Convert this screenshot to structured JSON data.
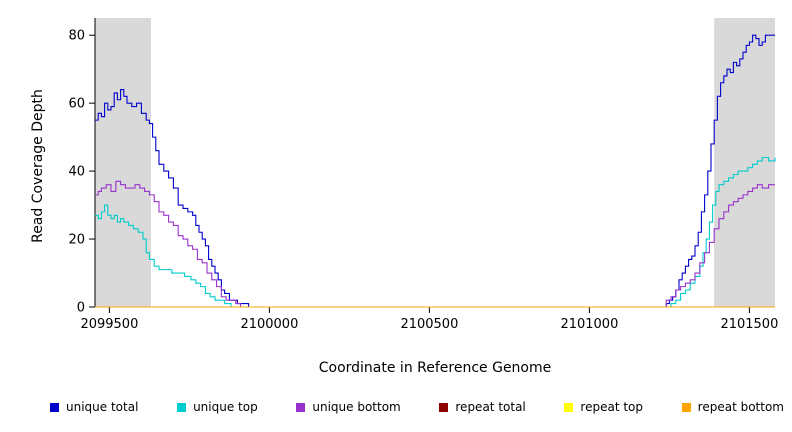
{
  "chart_data": {
    "type": "line",
    "title": "",
    "xlabel": "Coordinate in Reference Genome",
    "ylabel": "Read Coverage Depth",
    "xlim": [
      2099455,
      2101580
    ],
    "ylim": [
      0,
      83
    ],
    "x_ticks": [
      2099500,
      2100000,
      2100500,
      2101000,
      2101500
    ],
    "y_ticks": [
      0,
      20,
      40,
      60,
      80
    ],
    "grid": false,
    "shade_color": "#d9d9d9",
    "shaded_regions": [
      [
        2099455,
        2099630
      ],
      [
        2101390,
        2101580
      ]
    ],
    "legend_position": "bottom",
    "legend": [
      {
        "label": "unique total",
        "color": "#0000cd"
      },
      {
        "label": "unique top",
        "color": "#00cdcd"
      },
      {
        "label": "unique bottom",
        "color": "#9932cc"
      },
      {
        "label": "repeat total",
        "color": "#8b0000"
      },
      {
        "label": "repeat top",
        "color": "#ffff00"
      },
      {
        "label": "repeat bottom",
        "color": "#ffa500"
      }
    ],
    "series": [
      {
        "name": "unique total",
        "color": "#0000cd",
        "points": [
          [
            2099455,
            55
          ],
          [
            2099465,
            57
          ],
          [
            2099475,
            56
          ],
          [
            2099485,
            60
          ],
          [
            2099495,
            58
          ],
          [
            2099505,
            59
          ],
          [
            2099515,
            63
          ],
          [
            2099525,
            61
          ],
          [
            2099535,
            64
          ],
          [
            2099545,
            62
          ],
          [
            2099555,
            60
          ],
          [
            2099570,
            59
          ],
          [
            2099585,
            60
          ],
          [
            2099600,
            57
          ],
          [
            2099615,
            55
          ],
          [
            2099625,
            54
          ],
          [
            2099635,
            50
          ],
          [
            2099645,
            46
          ],
          [
            2099655,
            42
          ],
          [
            2099670,
            40
          ],
          [
            2099685,
            38
          ],
          [
            2099700,
            35
          ],
          [
            2099715,
            30
          ],
          [
            2099730,
            29
          ],
          [
            2099745,
            28
          ],
          [
            2099760,
            27
          ],
          [
            2099770,
            24
          ],
          [
            2099780,
            22
          ],
          [
            2099790,
            20
          ],
          [
            2099800,
            18
          ],
          [
            2099810,
            14
          ],
          [
            2099820,
            12
          ],
          [
            2099830,
            10
          ],
          [
            2099840,
            8
          ],
          [
            2099850,
            5
          ],
          [
            2099860,
            4
          ],
          [
            2099875,
            2
          ],
          [
            2099890,
            2
          ],
          [
            2099900,
            1
          ],
          [
            2099920,
            1
          ],
          [
            2099935,
            0
          ],
          [
            2101230,
            0
          ],
          [
            2101240,
            1
          ],
          [
            2101250,
            2
          ],
          [
            2101260,
            3
          ],
          [
            2101270,
            5
          ],
          [
            2101280,
            8
          ],
          [
            2101290,
            10
          ],
          [
            2101300,
            12
          ],
          [
            2101310,
            14
          ],
          [
            2101320,
            15
          ],
          [
            2101330,
            18
          ],
          [
            2101340,
            22
          ],
          [
            2101350,
            28
          ],
          [
            2101360,
            33
          ],
          [
            2101370,
            40
          ],
          [
            2101380,
            48
          ],
          [
            2101390,
            55
          ],
          [
            2101400,
            62
          ],
          [
            2101410,
            66
          ],
          [
            2101420,
            68
          ],
          [
            2101430,
            70
          ],
          [
            2101440,
            69
          ],
          [
            2101450,
            72
          ],
          [
            2101460,
            71
          ],
          [
            2101470,
            73
          ],
          [
            2101480,
            75
          ],
          [
            2101490,
            77
          ],
          [
            2101500,
            78
          ],
          [
            2101510,
            80
          ],
          [
            2101520,
            79
          ],
          [
            2101530,
            77
          ],
          [
            2101540,
            78
          ],
          [
            2101550,
            80
          ],
          [
            2101580,
            80
          ]
        ]
      },
      {
        "name": "unique top",
        "color": "#00cdcd",
        "points": [
          [
            2099455,
            27
          ],
          [
            2099465,
            26
          ],
          [
            2099475,
            28
          ],
          [
            2099485,
            30
          ],
          [
            2099495,
            27
          ],
          [
            2099505,
            26
          ],
          [
            2099515,
            27
          ],
          [
            2099525,
            25
          ],
          [
            2099535,
            26
          ],
          [
            2099545,
            25
          ],
          [
            2099560,
            24
          ],
          [
            2099575,
            23
          ],
          [
            2099590,
            22
          ],
          [
            2099605,
            20
          ],
          [
            2099615,
            16
          ],
          [
            2099625,
            14
          ],
          [
            2099640,
            12
          ],
          [
            2099655,
            11
          ],
          [
            2099675,
            11
          ],
          [
            2099695,
            10
          ],
          [
            2099715,
            10
          ],
          [
            2099735,
            9
          ],
          [
            2099755,
            8
          ],
          [
            2099770,
            7
          ],
          [
            2099785,
            6
          ],
          [
            2099800,
            4
          ],
          [
            2099815,
            3
          ],
          [
            2099830,
            2
          ],
          [
            2099845,
            2
          ],
          [
            2099860,
            1
          ],
          [
            2099880,
            0
          ],
          [
            2101240,
            0
          ],
          [
            2101255,
            1
          ],
          [
            2101270,
            2
          ],
          [
            2101285,
            4
          ],
          [
            2101300,
            5
          ],
          [
            2101315,
            7
          ],
          [
            2101330,
            9
          ],
          [
            2101345,
            12
          ],
          [
            2101355,
            16
          ],
          [
            2101365,
            20
          ],
          [
            2101375,
            25
          ],
          [
            2101385,
            30
          ],
          [
            2101395,
            34
          ],
          [
            2101405,
            36
          ],
          [
            2101420,
            37
          ],
          [
            2101435,
            38
          ],
          [
            2101450,
            39
          ],
          [
            2101465,
            40
          ],
          [
            2101480,
            40
          ],
          [
            2101495,
            41
          ],
          [
            2101510,
            42
          ],
          [
            2101525,
            43
          ],
          [
            2101540,
            44
          ],
          [
            2101560,
            43
          ],
          [
            2101580,
            44
          ]
        ]
      },
      {
        "name": "unique bottom",
        "color": "#9932cc",
        "points": [
          [
            2099455,
            33
          ],
          [
            2099465,
            34
          ],
          [
            2099475,
            35
          ],
          [
            2099490,
            36
          ],
          [
            2099505,
            34
          ],
          [
            2099520,
            37
          ],
          [
            2099535,
            36
          ],
          [
            2099550,
            35
          ],
          [
            2099565,
            35
          ],
          [
            2099580,
            36
          ],
          [
            2099595,
            35
          ],
          [
            2099610,
            34
          ],
          [
            2099625,
            33
          ],
          [
            2099640,
            31
          ],
          [
            2099655,
            28
          ],
          [
            2099670,
            27
          ],
          [
            2099685,
            25
          ],
          [
            2099700,
            24
          ],
          [
            2099715,
            21
          ],
          [
            2099730,
            20
          ],
          [
            2099745,
            18
          ],
          [
            2099760,
            17
          ],
          [
            2099775,
            14
          ],
          [
            2099790,
            13
          ],
          [
            2099805,
            10
          ],
          [
            2099820,
            8
          ],
          [
            2099835,
            6
          ],
          [
            2099850,
            3
          ],
          [
            2099865,
            2
          ],
          [
            2099880,
            2
          ],
          [
            2099895,
            1
          ],
          [
            2099910,
            0
          ],
          [
            2101225,
            0
          ],
          [
            2101240,
            2
          ],
          [
            2101255,
            3
          ],
          [
            2101270,
            5
          ],
          [
            2101285,
            6
          ],
          [
            2101300,
            7
          ],
          [
            2101315,
            8
          ],
          [
            2101330,
            10
          ],
          [
            2101345,
            13
          ],
          [
            2101360,
            16
          ],
          [
            2101375,
            19
          ],
          [
            2101390,
            23
          ],
          [
            2101405,
            26
          ],
          [
            2101420,
            28
          ],
          [
            2101435,
            30
          ],
          [
            2101450,
            31
          ],
          [
            2101465,
            32
          ],
          [
            2101480,
            33
          ],
          [
            2101495,
            34
          ],
          [
            2101510,
            35
          ],
          [
            2101525,
            36
          ],
          [
            2101540,
            35
          ],
          [
            2101560,
            36
          ],
          [
            2101580,
            36
          ]
        ]
      },
      {
        "name": "repeat total",
        "color": "#8b0000",
        "points": [
          [
            2099455,
            0
          ],
          [
            2101580,
            0
          ]
        ]
      },
      {
        "name": "repeat top",
        "color": "#ffff00",
        "points": [
          [
            2099455,
            0
          ],
          [
            2101580,
            0
          ]
        ]
      },
      {
        "name": "repeat bottom",
        "color": "#ffa500",
        "points": [
          [
            2099455,
            0
          ],
          [
            2101580,
            0
          ]
        ]
      }
    ]
  }
}
